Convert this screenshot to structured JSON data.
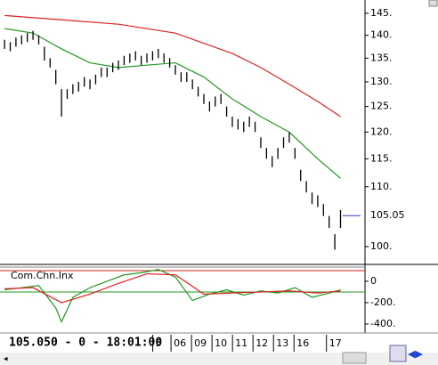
{
  "chart_data": [
    {
      "type": "ohlc",
      "log_scale": true,
      "ylim": [
        97.2,
        148.1
      ],
      "yticks": [
        {
          "value": 145,
          "label": "145."
        },
        {
          "value": 140,
          "label": "140."
        },
        {
          "value": 135,
          "label": "135."
        },
        {
          "value": 130,
          "label": "130."
        },
        {
          "value": 125,
          "label": "125."
        },
        {
          "value": 120,
          "label": "120."
        },
        {
          "value": 115,
          "label": "115."
        },
        {
          "value": 110,
          "label": "110."
        },
        {
          "value": 100,
          "label": "100."
        }
      ],
      "xlim": [
        -0.8,
        63.3
      ],
      "xticks": [
        {
          "value": 26.5,
          "label": "5"
        },
        {
          "value": 29.7,
          "label": "06"
        },
        {
          "value": 33.3,
          "label": "09"
        },
        {
          "value": 36.9,
          "label": "10"
        },
        {
          "value": 40.5,
          "label": "11"
        },
        {
          "value": 44.1,
          "label": "12"
        },
        {
          "value": 47.7,
          "label": "13"
        },
        {
          "value": 51.3,
          "label": "16"
        },
        {
          "value": 57.0,
          "label": "17"
        }
      ],
      "last_price": 105.05,
      "last_price_color": "#2233cc",
      "bar_color": "#000000",
      "high": [
        139,
        138.5,
        139.5,
        140,
        140.5,
        141,
        140,
        137.5,
        135,
        132.5,
        128.5,
        128.5,
        129.5,
        130,
        131,
        130.5,
        131.5,
        133,
        133,
        134,
        134.5,
        135.5,
        136,
        136.5,
        135.5,
        136,
        136.5,
        137,
        136,
        135,
        133.5,
        132,
        132,
        130.5,
        129,
        127.5,
        126,
        127,
        127.5,
        125,
        123,
        122.5,
        122,
        123,
        122,
        119,
        117,
        115.5,
        117,
        119,
        120,
        117,
        113,
        111,
        109,
        108.5,
        107,
        105,
        102,
        106
      ],
      "low": [
        137,
        136.5,
        137.5,
        138,
        138.5,
        139,
        138,
        134.5,
        133,
        129.5,
        123,
        126.5,
        127.5,
        128,
        129,
        128.5,
        129.5,
        131,
        131,
        132,
        132.5,
        133.5,
        134,
        134.5,
        133.5,
        134,
        134.5,
        135,
        134,
        133,
        131.5,
        130,
        130,
        128.5,
        127,
        125.5,
        124,
        125,
        125.5,
        123,
        121,
        120.5,
        120,
        121,
        120,
        117,
        115,
        113.5,
        115,
        117,
        118,
        115,
        111,
        109,
        107,
        106.5,
        105,
        103,
        99.5,
        103
      ],
      "series": [
        {
          "color": "#229922",
          "x": [
            0,
            5,
            10,
            15,
            20,
            25,
            30,
            35,
            40,
            45,
            50,
            55,
            59
          ],
          "values": [
            141.5,
            140.5,
            137,
            134,
            133,
            133.5,
            134,
            131,
            126.5,
            123,
            120,
            115,
            111.5
          ]
        },
        {
          "color": "#dd2222",
          "x": [
            0,
            10,
            20,
            30,
            40,
            45,
            50,
            55,
            59
          ],
          "values": [
            144.5,
            143.5,
            142.5,
            140.5,
            136,
            133,
            129.5,
            126,
            123
          ]
        }
      ]
    },
    {
      "type": "line",
      "title": "Com.Chn.Inx",
      "ylim": [
        -467,
        133
      ],
      "xlim": [
        -0.8,
        63.3
      ],
      "yticks": [
        0,
        {
          "value": -200,
          "label": "-200."
        },
        {
          "value": -400,
          "label": "-400."
        }
      ],
      "hlines": [
        {
          "value": 100,
          "color": "#dd2222"
        },
        {
          "value": -100,
          "color": "#229922"
        }
      ],
      "series": [
        {
          "color": "#229922",
          "x": [
            0,
            3,
            6,
            9,
            10,
            12,
            15,
            18,
            21,
            24,
            27,
            30,
            33,
            36,
            39,
            42,
            45,
            48,
            51,
            54,
            57,
            59
          ],
          "values": [
            -80,
            -60,
            -40,
            -250,
            -380,
            -150,
            -60,
            0,
            60,
            80,
            110,
            40,
            -180,
            -120,
            -80,
            -130,
            -90,
            -110,
            -60,
            -150,
            -110,
            -80
          ]
        },
        {
          "color": "#dd2222",
          "x": [
            0,
            5,
            10,
            15,
            20,
            25,
            30,
            35,
            40,
            45,
            50,
            55,
            59
          ],
          "values": [
            -70,
            -60,
            -200,
            -120,
            -20,
            70,
            60,
            -120,
            -110,
            -100,
            -90,
            -110,
            -90
          ]
        }
      ]
    }
  ],
  "footer": {
    "status": "105.050 - 0 - 18:01:00"
  }
}
